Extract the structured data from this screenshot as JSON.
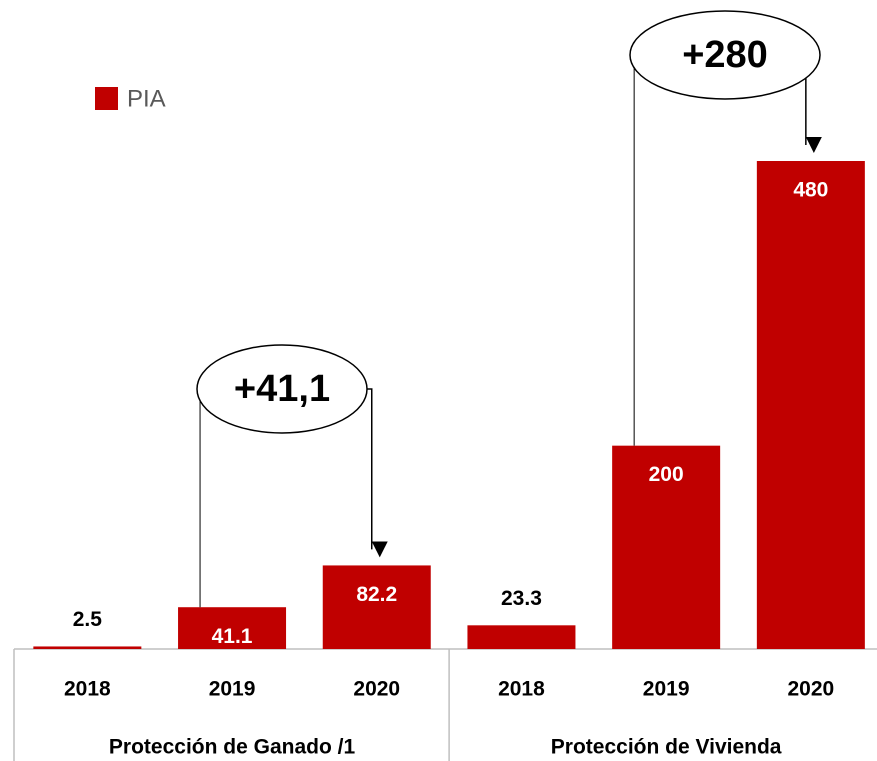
{
  "chart_data": {
    "type": "bar",
    "categories": [
      "2018",
      "2019",
      "2020",
      "2018",
      "2019",
      "2020"
    ],
    "groups": [
      "Protección de Ganado /1",
      "Protección de Vivienda"
    ],
    "series": [
      {
        "name": "PIA",
        "color": "#c00000",
        "values": [
          2.5,
          41.1,
          82.2,
          23.3,
          200,
          480
        ]
      }
    ],
    "annotations": [
      "+41,1",
      "+280"
    ],
    "legend": "top-left"
  }
}
